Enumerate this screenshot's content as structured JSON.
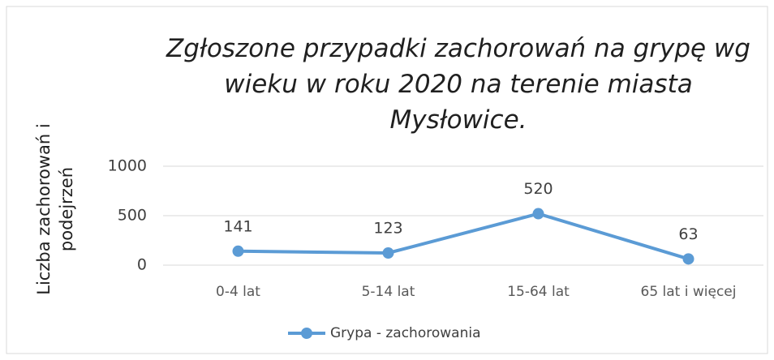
{
  "chart_data": {
    "type": "line",
    "title": "Zgłoszone przypadki zachorowań na grypę wg wieku w roku 2020 na terenie miasta Mysłowice.",
    "y_label": "Liczba zachorowań i podejrzeń",
    "categories": [
      "0-4 lat",
      "5-14 lat",
      "15-64 lat",
      "65 lat i więcej"
    ],
    "series": [
      {
        "name": "Grypa - zachorowania",
        "color": "#5b9bd5",
        "values": [
          141,
          123,
          520,
          63
        ]
      }
    ],
    "ylim": [
      0,
      1000
    ],
    "yticks": [
      0,
      500,
      1000
    ],
    "grid": true,
    "legend": "bottom"
  }
}
